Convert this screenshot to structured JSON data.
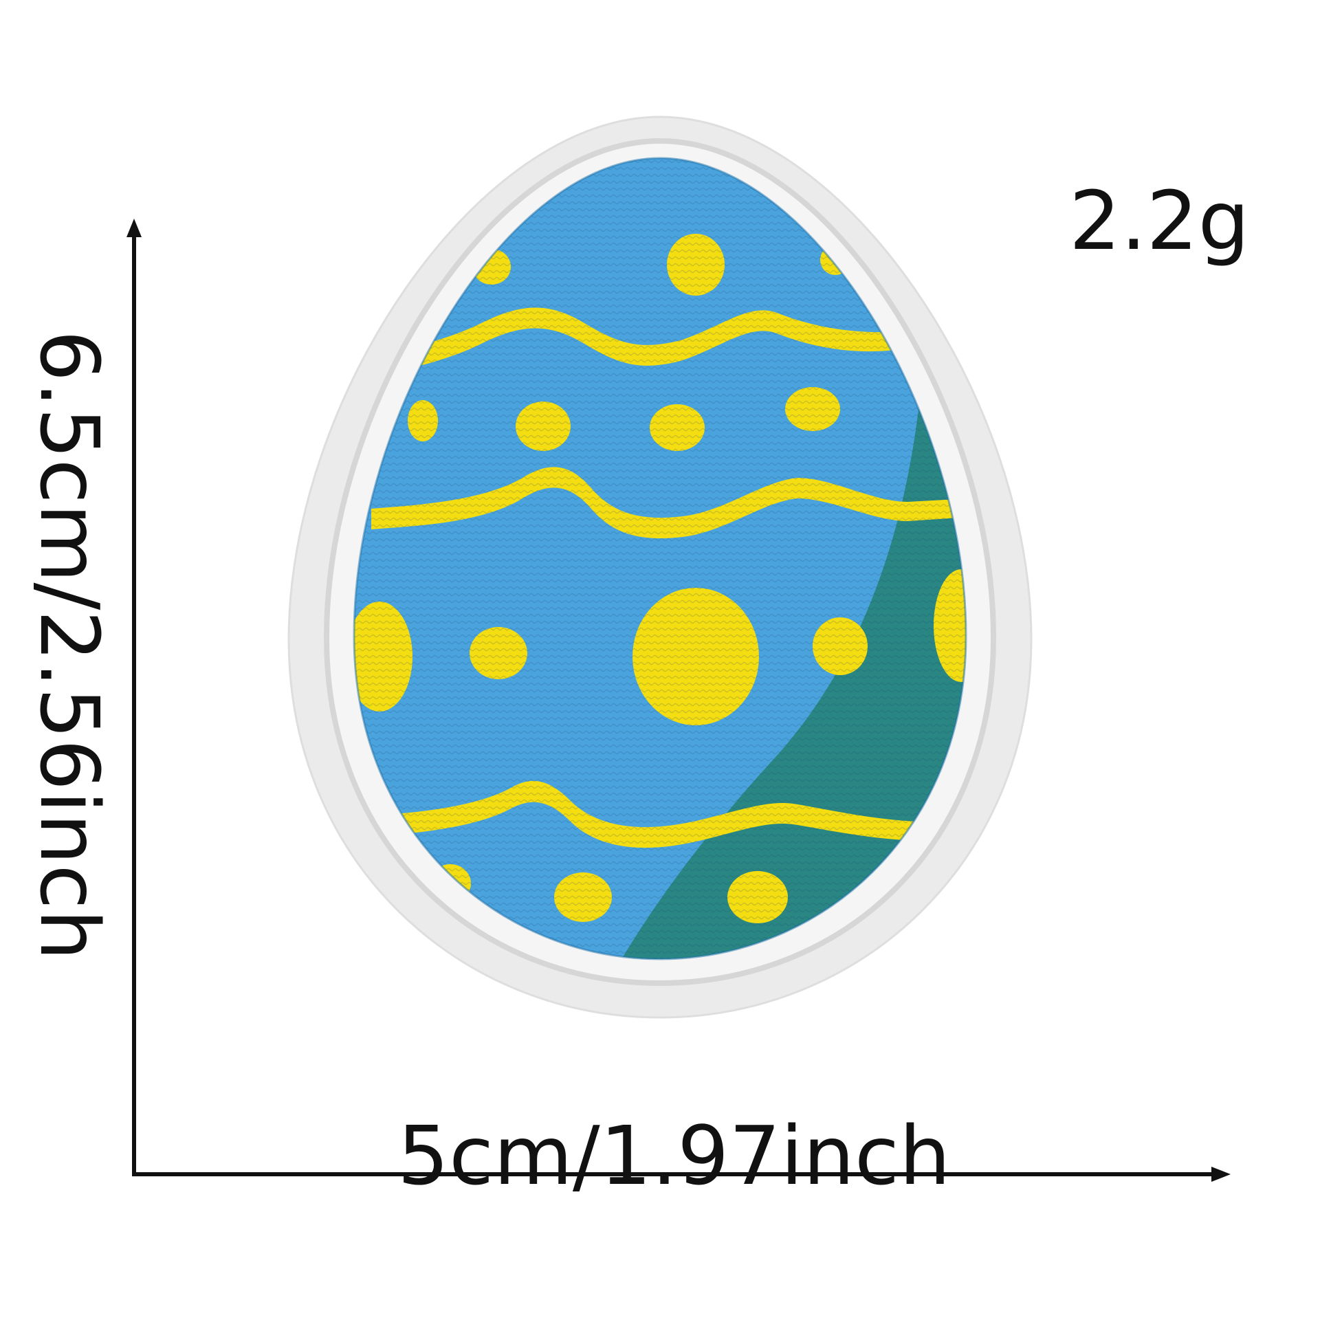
{
  "labels": {
    "weight": "2.2g",
    "width": "5cm/1.97inch",
    "height": "6.5cm/2.56inch"
  },
  "colors": {
    "background": "#ffffff",
    "text": "#111111",
    "felt_border": "#ebebeb",
    "stitch_outline": "#f6f6f6",
    "egg_blue": "#4aa3dd",
    "egg_teal": "#2a8683",
    "pattern_yellow": "#f4dd10"
  }
}
